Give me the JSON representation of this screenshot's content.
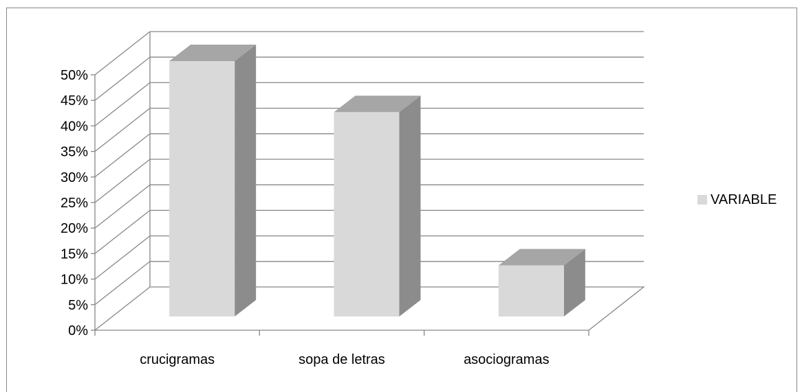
{
  "chart_data": {
    "type": "bar",
    "categories": [
      "crucigramas",
      "sopa de letras",
      "asociogramas"
    ],
    "series": [
      {
        "name": "VARIABLE",
        "values": [
          50,
          40,
          10
        ]
      }
    ],
    "ylim": [
      0,
      50
    ],
    "yticks": [
      "0%",
      "5%",
      "10%",
      "15%",
      "20%",
      "25%",
      "30%",
      "35%",
      "40%",
      "45%",
      "50%"
    ],
    "grid": true,
    "legend": "right",
    "style": "3d-column",
    "colors": {
      "front": "#d9d9d9",
      "side": "#8c8c8c",
      "top": "#a6a6a6",
      "legend_swatch": "#d9d9d9",
      "gridline": "#868686"
    }
  }
}
